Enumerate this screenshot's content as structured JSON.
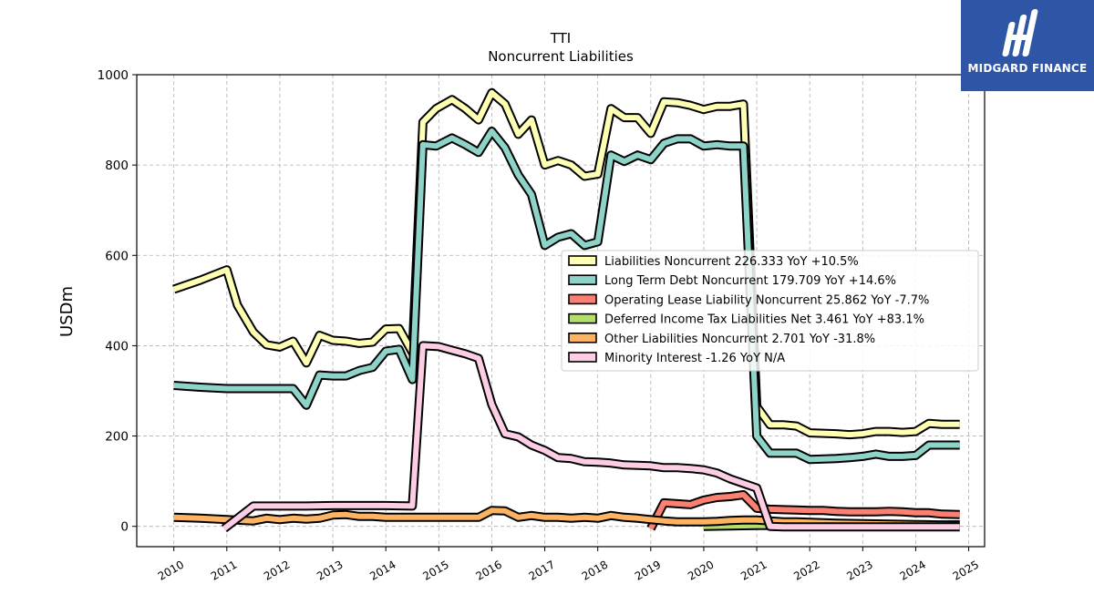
{
  "logo": {
    "text": "MIDGARD FINANCE",
    "icon": "midgard-m-logo-icon",
    "bg_color": "#2f56a6"
  },
  "chart_data": {
    "type": "line",
    "title": "TTI",
    "subtitle": "Noncurrent  Liabilities",
    "ylabel": "USDm",
    "xlabel": "",
    "xlim": [
      2009.3,
      2025.3
    ],
    "ylim": [
      -45,
      1000
    ],
    "yticks": [
      0,
      200,
      400,
      600,
      800,
      1000
    ],
    "xticks": [
      2010,
      2011,
      2012,
      2013,
      2014,
      2015,
      2016,
      2017,
      2018,
      2019,
      2020,
      2021,
      2022,
      2023,
      2024,
      2025
    ],
    "grid": true,
    "legend_position": "center-right",
    "series": [
      {
        "name": "Liabilities Noncurrent",
        "legend": "Liabilities Noncurrent  226.333 YoY +10.5%",
        "color": "#ffffb3",
        "points": [
          [
            2010.0,
            525
          ],
          [
            2010.5,
            545
          ],
          [
            2011.0,
            568
          ],
          [
            2011.2,
            490
          ],
          [
            2011.5,
            430
          ],
          [
            2011.75,
            402
          ],
          [
            2012.0,
            397
          ],
          [
            2012.25,
            410
          ],
          [
            2012.5,
            362
          ],
          [
            2012.75,
            423
          ],
          [
            2013.0,
            412
          ],
          [
            2013.25,
            410
          ],
          [
            2013.5,
            405
          ],
          [
            2013.75,
            408
          ],
          [
            2014.0,
            437
          ],
          [
            2014.25,
            438
          ],
          [
            2014.5,
            385
          ],
          [
            2014.7,
            895
          ],
          [
            2014.95,
            925
          ],
          [
            2015.25,
            945
          ],
          [
            2015.5,
            925
          ],
          [
            2015.75,
            900
          ],
          [
            2016.0,
            960
          ],
          [
            2016.25,
            935
          ],
          [
            2016.5,
            868
          ],
          [
            2016.75,
            900
          ],
          [
            2017.0,
            800
          ],
          [
            2017.25,
            810
          ],
          [
            2017.5,
            800
          ],
          [
            2017.75,
            775
          ],
          [
            2018.0,
            780
          ],
          [
            2018.25,
            925
          ],
          [
            2018.5,
            905
          ],
          [
            2018.75,
            905
          ],
          [
            2019.0,
            870
          ],
          [
            2019.25,
            940
          ],
          [
            2019.5,
            938
          ],
          [
            2019.75,
            932
          ],
          [
            2020.0,
            923
          ],
          [
            2020.25,
            930
          ],
          [
            2020.5,
            930
          ],
          [
            2020.75,
            935
          ],
          [
            2021.0,
            265
          ],
          [
            2021.25,
            225
          ],
          [
            2021.5,
            225
          ],
          [
            2021.75,
            222
          ],
          [
            2022.0,
            207
          ],
          [
            2022.5,
            205
          ],
          [
            2022.75,
            203
          ],
          [
            2023.0,
            205
          ],
          [
            2023.25,
            210
          ],
          [
            2023.5,
            210
          ],
          [
            2023.75,
            208
          ],
          [
            2024.0,
            210
          ],
          [
            2024.25,
            228
          ],
          [
            2024.5,
            226
          ],
          [
            2024.83,
            226
          ]
        ]
      },
      {
        "name": "Long Term Debt Noncurrent",
        "legend": "Long Term Debt Noncurrent  179.709 YoY +14.6%",
        "color": "#8dd3c7",
        "points": [
          [
            2010.0,
            312
          ],
          [
            2010.5,
            308
          ],
          [
            2011.0,
            305
          ],
          [
            2012.25,
            305
          ],
          [
            2012.5,
            268
          ],
          [
            2012.75,
            335
          ],
          [
            2013.0,
            333
          ],
          [
            2013.25,
            333
          ],
          [
            2013.5,
            345
          ],
          [
            2013.75,
            352
          ],
          [
            2014.0,
            388
          ],
          [
            2014.25,
            392
          ],
          [
            2014.5,
            325
          ],
          [
            2014.7,
            845
          ],
          [
            2014.95,
            842
          ],
          [
            2015.25,
            860
          ],
          [
            2015.5,
            845
          ],
          [
            2015.75,
            828
          ],
          [
            2016.0,
            875
          ],
          [
            2016.25,
            838
          ],
          [
            2016.5,
            778
          ],
          [
            2016.75,
            735
          ],
          [
            2017.0,
            622
          ],
          [
            2017.25,
            640
          ],
          [
            2017.5,
            648
          ],
          [
            2017.75,
            622
          ],
          [
            2018.0,
            630
          ],
          [
            2018.25,
            822
          ],
          [
            2018.5,
            808
          ],
          [
            2018.75,
            822
          ],
          [
            2019.0,
            812
          ],
          [
            2019.25,
            848
          ],
          [
            2019.5,
            858
          ],
          [
            2019.75,
            858
          ],
          [
            2020.0,
            842
          ],
          [
            2020.25,
            845
          ],
          [
            2020.5,
            842
          ],
          [
            2020.75,
            842
          ],
          [
            2021.0,
            200
          ],
          [
            2021.25,
            162
          ],
          [
            2021.5,
            162
          ],
          [
            2021.75,
            162
          ],
          [
            2022.0,
            148
          ],
          [
            2022.5,
            150
          ],
          [
            2022.75,
            152
          ],
          [
            2023.0,
            155
          ],
          [
            2023.25,
            160
          ],
          [
            2023.5,
            155
          ],
          [
            2023.75,
            155
          ],
          [
            2024.0,
            157
          ],
          [
            2024.25,
            180
          ],
          [
            2024.5,
            180
          ],
          [
            2024.83,
            180
          ]
        ]
      },
      {
        "name": "Operating Lease Liability Noncurrent",
        "legend": "Operating Lease Liability Noncurrent  25.862 YoY -7.7%",
        "color": "#fb8072",
        "points": [
          [
            2019.0,
            -5
          ],
          [
            2019.25,
            52
          ],
          [
            2019.5,
            50
          ],
          [
            2019.75,
            48
          ],
          [
            2020.0,
            58
          ],
          [
            2020.25,
            64
          ],
          [
            2020.5,
            66
          ],
          [
            2020.75,
            70
          ],
          [
            2021.0,
            40
          ],
          [
            2021.25,
            38
          ],
          [
            2021.5,
            37
          ],
          [
            2021.75,
            36
          ],
          [
            2022.0,
            35
          ],
          [
            2022.25,
            35
          ],
          [
            2022.5,
            33
          ],
          [
            2022.75,
            32
          ],
          [
            2023.0,
            32
          ],
          [
            2023.25,
            32
          ],
          [
            2023.5,
            33
          ],
          [
            2023.75,
            32
          ],
          [
            2024.0,
            30
          ],
          [
            2024.25,
            30
          ],
          [
            2024.5,
            27
          ],
          [
            2024.83,
            26
          ]
        ]
      },
      {
        "name": "Deferred Income Tax Liabilities Net",
        "legend": "Deferred Income Tax Liabilities Net  3.461 YoY +83.1%",
        "color": "#b3de69",
        "points": [
          [
            2020.0,
            0
          ],
          [
            2020.5,
            1
          ],
          [
            2021.0,
            2
          ],
          [
            2021.5,
            2
          ],
          [
            2022.0,
            2
          ],
          [
            2022.5,
            2
          ],
          [
            2023.0,
            2
          ],
          [
            2023.5,
            2
          ],
          [
            2024.0,
            2
          ],
          [
            2024.5,
            3
          ],
          [
            2024.83,
            3.5
          ]
        ]
      },
      {
        "name": "Other Liabilities Noncurrent",
        "legend": "Other Liabilities Noncurrent  2.701 YoY -31.8%",
        "color": "#fdb462",
        "points": [
          [
            2010.0,
            20
          ],
          [
            2010.5,
            18
          ],
          [
            2011.0,
            15
          ],
          [
            2011.5,
            12
          ],
          [
            2011.75,
            18
          ],
          [
            2012.0,
            15
          ],
          [
            2012.25,
            18
          ],
          [
            2012.5,
            16
          ],
          [
            2012.75,
            18
          ],
          [
            2013.0,
            25
          ],
          [
            2013.25,
            26
          ],
          [
            2013.5,
            22
          ],
          [
            2013.75,
            22
          ],
          [
            2014.0,
            20
          ],
          [
            2014.5,
            20
          ],
          [
            2015.0,
            20
          ],
          [
            2015.5,
            20
          ],
          [
            2015.75,
            20
          ],
          [
            2016.0,
            35
          ],
          [
            2016.25,
            34
          ],
          [
            2016.5,
            20
          ],
          [
            2016.75,
            24
          ],
          [
            2017.0,
            20
          ],
          [
            2017.25,
            20
          ],
          [
            2017.5,
            18
          ],
          [
            2017.75,
            20
          ],
          [
            2018.0,
            18
          ],
          [
            2018.25,
            24
          ],
          [
            2018.5,
            20
          ],
          [
            2018.75,
            18
          ],
          [
            2019.0,
            15
          ],
          [
            2019.25,
            12
          ],
          [
            2019.5,
            10
          ],
          [
            2019.75,
            10
          ],
          [
            2020.0,
            10
          ],
          [
            2020.25,
            11
          ],
          [
            2020.5,
            13
          ],
          [
            2020.75,
            14
          ],
          [
            2021.0,
            14
          ],
          [
            2021.25,
            12
          ],
          [
            2021.5,
            10
          ],
          [
            2021.75,
            10
          ],
          [
            2022.0,
            9
          ],
          [
            2022.5,
            7
          ],
          [
            2023.0,
            6
          ],
          [
            2023.5,
            5
          ],
          [
            2024.0,
            4
          ],
          [
            2024.5,
            3
          ],
          [
            2024.83,
            2.7
          ]
        ]
      },
      {
        "name": "Minority Interest",
        "legend": "Minority Interest  -1.26 YoY N/A",
        "color": "#fccde5",
        "points": [
          [
            2010.95,
            -5
          ],
          [
            2011.5,
            45
          ],
          [
            2012.0,
            45
          ],
          [
            2012.5,
            45
          ],
          [
            2013.0,
            46
          ],
          [
            2013.5,
            46
          ],
          [
            2014.0,
            46
          ],
          [
            2014.5,
            45
          ],
          [
            2014.7,
            400
          ],
          [
            2015.0,
            398
          ],
          [
            2015.25,
            390
          ],
          [
            2015.5,
            382
          ],
          [
            2015.75,
            372
          ],
          [
            2016.0,
            270
          ],
          [
            2016.25,
            205
          ],
          [
            2016.5,
            198
          ],
          [
            2016.75,
            180
          ],
          [
            2017.0,
            168
          ],
          [
            2017.25,
            152
          ],
          [
            2017.5,
            150
          ],
          [
            2017.75,
            143
          ],
          [
            2018.0,
            142
          ],
          [
            2018.25,
            140
          ],
          [
            2018.5,
            136
          ],
          [
            2018.75,
            135
          ],
          [
            2019.0,
            134
          ],
          [
            2019.25,
            130
          ],
          [
            2019.5,
            130
          ],
          [
            2019.75,
            128
          ],
          [
            2020.0,
            125
          ],
          [
            2020.25,
            118
          ],
          [
            2020.5,
            105
          ],
          [
            2020.75,
            95
          ],
          [
            2021.0,
            85
          ],
          [
            2021.25,
            0
          ],
          [
            2021.5,
            -1
          ],
          [
            2022.0,
            -1
          ],
          [
            2023.0,
            -1
          ],
          [
            2024.0,
            -1
          ],
          [
            2024.83,
            -1.26
          ]
        ]
      }
    ]
  }
}
